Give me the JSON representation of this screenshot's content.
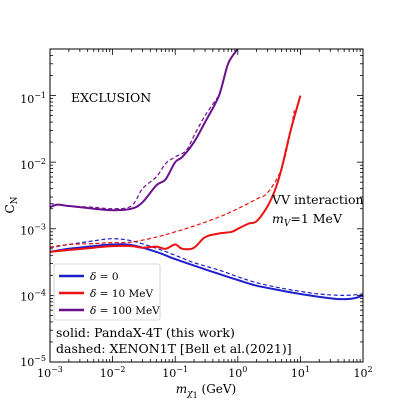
{
  "chart_data": {
    "type": "line",
    "title": "",
    "xlabel": "m_χ1 (GeV)",
    "ylabel": "C_N",
    "xscale": "log",
    "yscale": "log",
    "xlim": [
      0.001,
      100
    ],
    "ylim": [
      1e-05,
      0.5
    ],
    "grid": false,
    "legend_position": "lower-left",
    "x_tick_labels": [
      {
        "base": "10",
        "exp": "−3"
      },
      {
        "base": "10",
        "exp": "−2"
      },
      {
        "base": "10",
        "exp": "−1"
      },
      {
        "base": "10",
        "exp": "0"
      },
      {
        "base": "10",
        "exp": "1"
      },
      {
        "base": "10",
        "exp": "2"
      }
    ],
    "y_tick_labels": [
      {
        "base": "10",
        "exp": "−5"
      },
      {
        "base": "10",
        "exp": "−4"
      },
      {
        "base": "10",
        "exp": "−3"
      },
      {
        "base": "10",
        "exp": "−2"
      },
      {
        "base": "10",
        "exp": "−1"
      }
    ],
    "annotations": {
      "exclusion": "EXCLUSION",
      "interaction_line1": "VV interaction",
      "interaction_line2": "=1 MeV",
      "interaction_symbol": "m",
      "interaction_sub": "V",
      "note_line1": "solid: PandaX-4T (this work)",
      "note_line2": "dashed: XENON1T [Bell et al.(2021)]"
    },
    "legend": [
      {
        "prefix": "δ = ",
        "value": "0",
        "color": "#1f1fcc"
      },
      {
        "prefix": "δ = ",
        "value": "10 MeV",
        "color": "#ee1111"
      },
      {
        "prefix": "δ = ",
        "value": "100 MeV",
        "color": "#6a0f8e"
      }
    ],
    "series": [
      {
        "name": "δ = 0 (PandaX-4T)",
        "color": "#1f1fcc",
        "style": "solid",
        "x": [
          0.001,
          0.002,
          0.005,
          0.01,
          0.02,
          0.05,
          0.1,
          0.2,
          0.5,
          1,
          2,
          5,
          10,
          20,
          40,
          70,
          100
        ],
        "y": [
          0.00045,
          0.0005,
          0.00055,
          0.00058,
          0.00057,
          0.00045,
          0.00035,
          0.00028,
          0.00021,
          0.00017,
          0.00014,
          0.000118,
          0.000105,
          9.5e-05,
          8.8e-05,
          9e-05,
          0.0001
        ]
      },
      {
        "name": "δ = 0 (XENON1T)",
        "color": "#1f1fcc",
        "style": "dashed",
        "x": [
          0.001,
          0.002,
          0.005,
          0.01,
          0.02,
          0.05,
          0.1,
          0.2,
          0.5,
          1,
          2,
          5,
          10,
          20,
          50,
          100
        ],
        "y": [
          0.00052,
          0.00058,
          0.00066,
          0.00071,
          0.00066,
          0.00051,
          0.0004,
          0.00031,
          0.00024,
          0.00019,
          0.000155,
          0.000128,
          0.000115,
          0.000105,
          0.0001,
          0.000105
        ]
      },
      {
        "name": "δ = 10 MeV (PandaX-4T)",
        "color": "#ee1111",
        "style": "solid",
        "x": [
          0.001,
          0.002,
          0.005,
          0.01,
          0.02,
          0.03,
          0.05,
          0.07,
          0.1,
          0.13,
          0.2,
          0.3,
          0.5,
          0.8,
          1,
          1.5,
          2,
          3,
          4,
          5,
          7,
          10
        ],
        "y": [
          0.00045,
          0.00048,
          0.00052,
          0.00055,
          0.00055,
          0.00052,
          0.00054,
          0.0005,
          0.00058,
          0.0005,
          0.00052,
          0.00075,
          0.00085,
          0.0009,
          0.001,
          0.0012,
          0.0013,
          0.0022,
          0.004,
          0.008,
          0.03,
          0.1
        ]
      },
      {
        "name": "δ = 10 MeV (XENON1T)",
        "color": "#ee1111",
        "style": "dashed",
        "x": [
          0.001,
          0.002,
          0.005,
          0.01,
          0.02,
          0.05,
          0.1,
          0.2,
          0.5,
          1,
          2,
          3,
          5,
          7,
          8
        ],
        "y": [
          0.00053,
          0.00058,
          0.0006,
          0.00062,
          0.00063,
          0.00075,
          0.0009,
          0.0011,
          0.0015,
          0.002,
          0.0028,
          0.0035,
          0.008,
          0.03,
          0.06
        ]
      },
      {
        "name": "δ = 100 MeV (PandaX-4T)",
        "color": "#6a0f8e",
        "style": "solid",
        "x": [
          0.001,
          0.0013,
          0.002,
          0.005,
          0.01,
          0.02,
          0.03,
          0.05,
          0.07,
          0.1,
          0.13,
          0.2,
          0.3,
          0.5,
          0.7,
          1
        ],
        "y": [
          0.0021,
          0.0023,
          0.0022,
          0.002,
          0.0019,
          0.002,
          0.0025,
          0.0045,
          0.0055,
          0.01,
          0.012,
          0.02,
          0.04,
          0.1,
          0.3,
          0.5
        ]
      },
      {
        "name": "δ = 100 MeV (XENON1T)",
        "color": "#6a0f8e",
        "style": "dashed",
        "x": [
          0.001,
          0.002,
          0.005,
          0.01,
          0.02,
          0.03,
          0.05,
          0.07,
          0.1,
          0.15,
          0.2,
          0.3,
          0.5
        ],
        "y": [
          0.0024,
          0.0022,
          0.0021,
          0.002,
          0.0022,
          0.004,
          0.006,
          0.0095,
          0.012,
          0.015,
          0.025,
          0.05,
          0.1
        ]
      }
    ]
  }
}
